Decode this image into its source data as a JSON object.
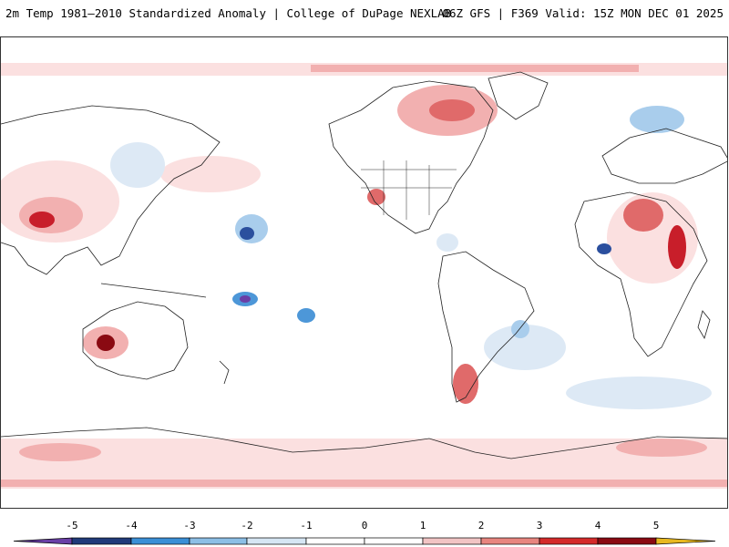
{
  "header": {
    "left_title": "2m Temp 1981–2010 Standardized Anomaly | College of DuPage NEXLAB",
    "right_title": "06Z GFS | F369 Valid: 15Z MON DEC 01 2025"
  },
  "colorbar": {
    "ticks": [
      "-5",
      "-4",
      "-3",
      "-2",
      "-1",
      "0",
      "1",
      "2",
      "3",
      "4",
      "5"
    ],
    "colors": [
      "#6a3fa6",
      "#203a7a",
      "#3a8fd6",
      "#8cbfe6",
      "#d6e6f4",
      "#ffffff",
      "#ffffff",
      "#f2c4c4",
      "#e8857f",
      "#d42a2a",
      "#8a0a12",
      "#e8b820"
    ]
  },
  "map": {
    "land_color": "#ffffff",
    "coast_color": "#222222",
    "warm_colors": [
      "#fbe0e0",
      "#f2b0b0",
      "#e06a6a",
      "#c81e2a",
      "#8a0a12"
    ],
    "cold_colors": [
      "#dde9f5",
      "#a9cdec",
      "#4d97d8",
      "#2b4f9e",
      "#6a3fa6"
    ]
  }
}
